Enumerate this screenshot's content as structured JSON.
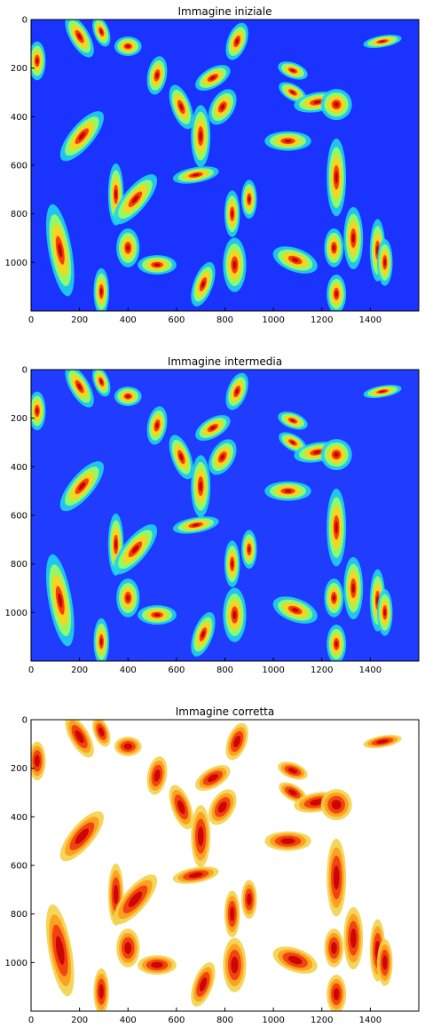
{
  "chart_data": [
    {
      "type": "heatmap",
      "title": "Immagine iniziale",
      "colormap": "jet",
      "background": "#1b33ff",
      "x_ticks": [
        "0",
        "200",
        "400",
        "600",
        "800",
        "1000",
        "1200",
        "1400"
      ],
      "y_ticks": [
        "0",
        "200",
        "400",
        "600",
        "800",
        "1000"
      ],
      "xlim": [
        0,
        1600
      ],
      "ylim": [
        1200,
        0
      ]
    },
    {
      "type": "heatmap",
      "title": "Immagine intermedia",
      "colormap": "jet",
      "background": "#1f3cff",
      "x_ticks": [
        "0",
        "200",
        "400",
        "600",
        "800",
        "1000",
        "1200",
        "1400"
      ],
      "y_ticks": [
        "0",
        "200",
        "400",
        "600",
        "800",
        "1000"
      ],
      "xlim": [
        0,
        1600
      ],
      "ylim": [
        1200,
        0
      ]
    },
    {
      "type": "heatmap",
      "title": "Immagine corretta",
      "colormap": "hot_r",
      "background": "#ffffff",
      "x_ticks": [
        "0",
        "200",
        "400",
        "600",
        "800",
        "1000",
        "1200",
        "1400"
      ],
      "y_ticks": [
        "0",
        "200",
        "400",
        "600",
        "800",
        "1000"
      ],
      "xlim": [
        0,
        1600
      ],
      "ylim": [
        1200,
        0
      ]
    }
  ]
}
